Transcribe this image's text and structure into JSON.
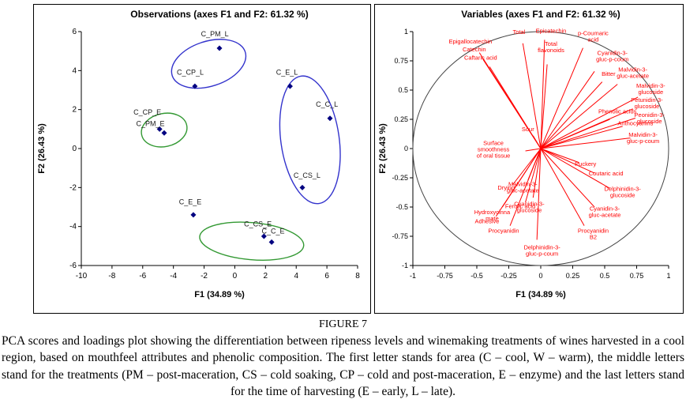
{
  "figure": {
    "label": "FIGURE 7",
    "caption": "PCA scores and loadings plot showing the differentiation between ripeness levels and winemaking treatments of wines harvested in a cool region, based on mouthfeel attributes and phenolic composition. The first letter stands for area (C – cool, W – warm), the middle letters stand for the treatments (PM – post-maceration, CS – cold soaking, CP – cold and post-maceration, E – enzyme) and the last letters stand for the time of harvesting (E – early, L – late)."
  },
  "chart_data": [
    {
      "type": "scatter",
      "title": "Observations (axes F1 and F2: 61.32 %)",
      "xlabel": "F1 (34.89 %)",
      "ylabel": "F2 (26.43 %)",
      "xlim": [
        -10,
        8
      ],
      "ylim": [
        -6,
        6
      ],
      "xticks": [
        -10,
        -8,
        -6,
        -4,
        -2,
        0,
        2,
        4,
        6,
        8
      ],
      "yticks": [
        -6,
        -4,
        -2,
        0,
        2,
        4,
        6
      ],
      "grid": false,
      "marker_color": "#000080",
      "label_color": "#1a1a1a",
      "points": [
        {
          "label": "C_PM_L",
          "x": -1.0,
          "y": 5.15,
          "lx": -1.3,
          "ly": 5.75
        },
        {
          "label": "C_CP_L",
          "x": -2.6,
          "y": 3.2,
          "lx": -2.9,
          "ly": 3.8
        },
        {
          "label": "C_E_L",
          "x": 3.6,
          "y": 3.2,
          "lx": 3.4,
          "ly": 3.8
        },
        {
          "label": "C_C_L",
          "x": 6.2,
          "y": 1.55,
          "lx": 6.0,
          "ly": 2.15
        },
        {
          "label": "C_CP_E",
          "x": -4.9,
          "y": 1.0,
          "lx": -5.7,
          "ly": 1.75
        },
        {
          "label": "C_PM_E",
          "x": -4.6,
          "y": 0.8,
          "lx": -5.5,
          "ly": 1.15
        },
        {
          "label": "C_CS_L",
          "x": 4.4,
          "y": -2.0,
          "lx": 4.7,
          "ly": -1.5
        },
        {
          "label": "C_E_E",
          "x": -2.7,
          "y": -3.4,
          "lx": -2.9,
          "ly": -2.85
        },
        {
          "label": "C_CS_E",
          "x": 1.9,
          "y": -4.5,
          "lx": 1.5,
          "ly": -4.0
        },
        {
          "label": "C_C_E",
          "x": 2.4,
          "y": -4.8,
          "lx": 2.5,
          "ly": -4.35
        }
      ],
      "ellipses": [
        {
          "cx": -1.7,
          "cy": 4.35,
          "rx": 2.5,
          "ry": 1.15,
          "angle": -18,
          "color": "#3333CC"
        },
        {
          "cx": 4.9,
          "cy": 0.45,
          "rx": 1.9,
          "ry": 3.3,
          "angle": -8,
          "color": "#3333CC"
        },
        {
          "cx": -4.6,
          "cy": 0.95,
          "rx": 1.5,
          "ry": 0.85,
          "angle": -12,
          "color": "#339933"
        },
        {
          "cx": 1.1,
          "cy": -4.75,
          "rx": 3.4,
          "ry": 0.95,
          "angle": 5,
          "color": "#339933"
        }
      ]
    },
    {
      "type": "scatter",
      "title": "Variables (axes F1 and F2: 61.32 %)",
      "xlabel": "F1 (34.89 %)",
      "ylabel": "F2 (26.43 %)",
      "xlim": [
        -1,
        1
      ],
      "ylim": [
        -1,
        1
      ],
      "xticks": [
        -1,
        -0.75,
        -0.5,
        -0.25,
        0,
        0.25,
        0.5,
        0.75,
        1
      ],
      "yticks": [
        -1,
        -0.75,
        -0.5,
        -0.25,
        0,
        0.25,
        0.5,
        0.75,
        1
      ],
      "grid": false,
      "unit_circle": true,
      "vector_color": "#FF0000",
      "vectors": [
        {
          "lines": [
            "Total"
          ],
          "x": -0.14,
          "y": 0.9,
          "lx": -0.17,
          "ly": 0.98
        },
        {
          "lines": [
            "Epicatechin"
          ],
          "x": 0.03,
          "y": 0.93,
          "lx": 0.08,
          "ly": 0.99
        },
        {
          "lines": [
            "p-Coumaric",
            "acid"
          ],
          "x": 0.33,
          "y": 0.86,
          "lx": 0.41,
          "ly": 0.97
        },
        {
          "lines": [
            "Total",
            "flavonoids"
          ],
          "x": 0.05,
          "y": 0.72,
          "lx": 0.08,
          "ly": 0.88
        },
        {
          "lines": [
            "Epigallocatechin"
          ],
          "x": -0.48,
          "y": 0.82,
          "lx": -0.55,
          "ly": 0.9
        },
        {
          "lines": [
            "Catechin"
          ],
          "x": -0.45,
          "y": 0.76,
          "lx": -0.52,
          "ly": 0.83
        },
        {
          "lines": [
            "Caftaric acid"
          ],
          "x": -0.4,
          "y": 0.7,
          "lx": -0.47,
          "ly": 0.76
        },
        {
          "lines": [
            "Cyanidin-3-",
            "gluc-p-coum"
          ],
          "x": 0.42,
          "y": 0.66,
          "lx": 0.56,
          "ly": 0.8
        },
        {
          "lines": [
            "Bitter"
          ],
          "x": 0.48,
          "y": 0.57,
          "lx": 0.53,
          "ly": 0.62
        },
        {
          "lines": [
            "Malvidin-3-",
            "gluc-acetate"
          ],
          "x": 0.6,
          "y": 0.55,
          "lx": 0.72,
          "ly": 0.66
        },
        {
          "lines": [
            "Malvidin-3-",
            "glucoside"
          ],
          "x": 0.76,
          "y": 0.44,
          "lx": 0.86,
          "ly": 0.52
        },
        {
          "lines": [
            "Petunidin-3-",
            "glucoside"
          ],
          "x": 0.72,
          "y": 0.34,
          "lx": 0.83,
          "ly": 0.4
        },
        {
          "lines": [
            "Peonidin-3-",
            "glucoside"
          ],
          "x": 0.74,
          "y": 0.26,
          "lx": 0.85,
          "ly": 0.27
        },
        {
          "lines": [
            "Anthocyanins"
          ],
          "x": 0.64,
          "y": 0.19,
          "lx": 0.74,
          "ly": 0.2
        },
        {
          "lines": [
            "Phenolic acids"
          ],
          "x": 0.54,
          "y": 0.25,
          "lx": 0.6,
          "ly": 0.3
        },
        {
          "lines": [
            "Malvidin-3-",
            "gluc-p-coum"
          ],
          "x": 0.7,
          "y": 0.09,
          "lx": 0.8,
          "ly": 0.1
        },
        {
          "lines": [
            "Puckery"
          ],
          "x": 0.3,
          "y": -0.12,
          "lx": 0.35,
          "ly": -0.15
        },
        {
          "lines": [
            "Coutaric acid"
          ],
          "x": 0.42,
          "y": -0.21,
          "lx": 0.51,
          "ly": -0.23
        },
        {
          "lines": [
            "Delphinidin-3-",
            "glucoside"
          ],
          "x": 0.54,
          "y": -0.34,
          "lx": 0.64,
          "ly": -0.36
        },
        {
          "lines": [
            "Cyanidin-3-",
            "gluc-acetate"
          ],
          "x": 0.42,
          "y": -0.5,
          "lx": 0.5,
          "ly": -0.53
        },
        {
          "lines": [
            "Procyanidin",
            "B2"
          ],
          "x": 0.34,
          "y": -0.66,
          "lx": 0.41,
          "ly": -0.72
        },
        {
          "lines": [
            "Delphinidin-3-",
            "gluc-p-coum"
          ],
          "x": -0.03,
          "y": -0.78,
          "lx": 0.01,
          "ly": -0.86
        },
        {
          "lines": [
            "Procyanidin"
          ],
          "x": -0.24,
          "y": -0.66,
          "lx": -0.29,
          "ly": -0.72
        },
        {
          "lines": [
            "Adhesive"
          ],
          "x": -0.35,
          "y": -0.58,
          "lx": -0.42,
          "ly": -0.64
        },
        {
          "lines": [
            "Hydroxycinna",
            "mate"
          ],
          "x": -0.3,
          "y": -0.5,
          "lx": -0.38,
          "ly": -0.56
        },
        {
          "lines": [
            "Ferulic acid"
          ],
          "x": -0.12,
          "y": -0.46,
          "lx": -0.16,
          "ly": -0.51
        },
        {
          "lines": [
            "Cyanidin-3-",
            "glucoside"
          ],
          "x": -0.06,
          "y": -0.42,
          "lx": -0.09,
          "ly": -0.49
        },
        {
          "lines": [
            "Malvidin-3-",
            "gluc-acetate"
          ],
          "x": -0.1,
          "y": -0.27,
          "lx": -0.14,
          "ly": -0.32
        },
        {
          "lines": [
            "Drying"
          ],
          "x": -0.22,
          "y": -0.31,
          "lx": -0.27,
          "ly": -0.35
        },
        {
          "lines": [
            "Surface",
            "smoothness",
            "of oral tissue"
          ],
          "x": -0.12,
          "y": -0.02,
          "lx": -0.37,
          "ly": 0.03
        },
        {
          "lines": [
            "Sour"
          ],
          "x": -0.06,
          "y": 0.11,
          "lx": -0.1,
          "ly": 0.15
        }
      ]
    }
  ]
}
